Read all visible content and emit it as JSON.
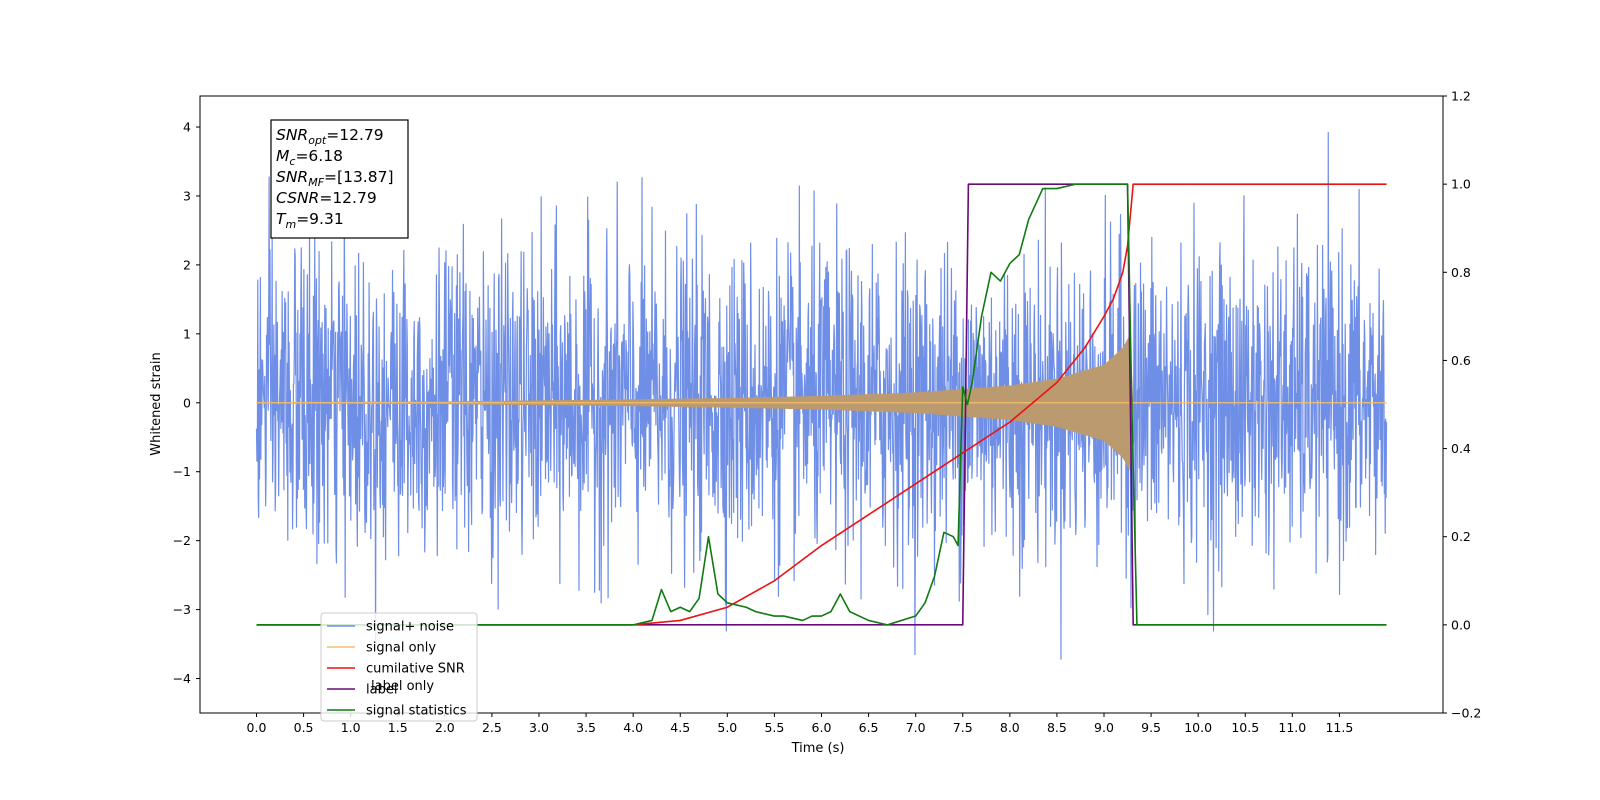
{
  "chart_data": {
    "type": "line",
    "title": "",
    "xlabel": "Time (s)",
    "ylabel": "Whitened strain",
    "xlim": [
      -0.6,
      12.6
    ],
    "ylim": [
      -4.5,
      4.45
    ],
    "y2lim": [
      -0.2,
      1.2
    ],
    "x_ticks": [
      0.0,
      0.5,
      1.0,
      1.5,
      2.0,
      2.5,
      3.0,
      3.5,
      4.0,
      4.5,
      5.0,
      5.5,
      6.0,
      6.5,
      7.0,
      7.5,
      8.0,
      8.5,
      9.0,
      9.5,
      10.0,
      10.5,
      11.0,
      11.5
    ],
    "x_tick_labels": [
      "0.0",
      "0.5",
      "1.0",
      "1.5",
      "2.0",
      "2.5",
      "3.0",
      "3.5",
      "4.0",
      "4.5",
      "5.0",
      "5.5",
      "6.0",
      "6.5",
      "7.0",
      "7.5",
      "8.0",
      "8.5",
      "9.0",
      "9.5",
      "10.0",
      "10.5",
      "11.0",
      "11.5"
    ],
    "y_ticks": [
      4,
      3,
      2,
      1,
      0,
      -1,
      -2,
      -3,
      -4
    ],
    "y_tick_labels": [
      "4",
      "3",
      "2",
      "1",
      "0",
      "−1",
      "−2",
      "−3",
      "−4"
    ],
    "y2_ticks": [
      1.2,
      1.0,
      0.8,
      0.6,
      0.4,
      0.2,
      0.0,
      -0.2
    ],
    "y2_tick_labels": [
      "1.2",
      "1.0",
      "0.8",
      "0.6",
      "0.4",
      "0.2",
      "0.0",
      "−0.2"
    ],
    "grid": false,
    "legend_position": "lower-left",
    "annotation_box": {
      "lines": [
        {
          "main": "SNR",
          "sub": "opt",
          "rest": "=12.79"
        },
        {
          "main": "M",
          "sub": "c",
          "rest": "=6.18"
        },
        {
          "main": "SNR",
          "sub": "MF",
          "rest": "=[13.87]"
        },
        {
          "main": "CSNR",
          "sub": "",
          "rest": "=12.79"
        },
        {
          "main": "T",
          "sub": "m",
          "rest": "=9.31"
        }
      ]
    },
    "series": [
      {
        "name": "signal+ noise",
        "axis": "left",
        "color": "#6f8ee6",
        "t_end": 12.0,
        "noise_sigma": 1.1,
        "range_min": -4.0,
        "range_max": 4.05
      },
      {
        "name": "signal only",
        "axis": "left",
        "color": "#f5bf6a",
        "envelope": [
          [
            0.0,
            0.01
          ],
          [
            2.0,
            0.02
          ],
          [
            4.0,
            0.05
          ],
          [
            5.0,
            0.07
          ],
          [
            6.0,
            0.1
          ],
          [
            7.0,
            0.15
          ],
          [
            7.5,
            0.2
          ],
          [
            8.0,
            0.25
          ],
          [
            8.5,
            0.35
          ],
          [
            9.0,
            0.55
          ],
          [
            9.2,
            0.8
          ],
          [
            9.28,
            1.0
          ],
          [
            9.31,
            0.0
          ],
          [
            12.0,
            0.0
          ]
        ]
      },
      {
        "name": "cumilative SNR",
        "axis": "right",
        "color": "#ee1111",
        "x": [
          0.0,
          4.0,
          4.5,
          5.0,
          5.5,
          6.0,
          6.5,
          7.0,
          7.5,
          8.0,
          8.5,
          8.8,
          9.0,
          9.1,
          9.2,
          9.25,
          9.28,
          9.31,
          12.0
        ],
        "values": [
          0.0,
          0.0,
          0.01,
          0.04,
          0.1,
          0.18,
          0.25,
          0.32,
          0.39,
          0.46,
          0.55,
          0.63,
          0.7,
          0.74,
          0.8,
          0.86,
          0.93,
          1.0,
          1.0
        ]
      },
      {
        "name": "label",
        "axis": "right",
        "color": "#6a0a7a",
        "x": [
          0.0,
          7.5,
          7.56,
          9.25,
          9.31,
          12.0
        ],
        "values": [
          0.0,
          0.0,
          1.0,
          1.0,
          0.0,
          0.0
        ]
      },
      {
        "name": "signal statistics",
        "axis": "right",
        "color": "#117a11",
        "x": [
          0.0,
          4.0,
          4.2,
          4.3,
          4.4,
          4.5,
          4.6,
          4.7,
          4.8,
          4.9,
          5.0,
          5.2,
          5.3,
          5.5,
          5.6,
          5.8,
          5.9,
          6.0,
          6.1,
          6.2,
          6.3,
          6.5,
          6.7,
          7.0,
          7.1,
          7.2,
          7.3,
          7.4,
          7.45,
          7.5,
          7.55,
          7.6,
          7.7,
          7.8,
          7.9,
          8.0,
          8.1,
          8.2,
          8.35,
          8.5,
          8.7,
          9.0,
          9.25,
          9.3,
          9.35,
          12.0
        ],
        "values": [
          0.0,
          0.0,
          0.01,
          0.08,
          0.03,
          0.04,
          0.03,
          0.06,
          0.2,
          0.07,
          0.05,
          0.04,
          0.03,
          0.02,
          0.02,
          0.01,
          0.02,
          0.02,
          0.03,
          0.07,
          0.03,
          0.01,
          0.0,
          0.02,
          0.05,
          0.11,
          0.21,
          0.2,
          0.18,
          0.54,
          0.5,
          0.55,
          0.7,
          0.8,
          0.78,
          0.82,
          0.84,
          0.92,
          0.99,
          0.99,
          1.0,
          1.0,
          1.0,
          0.45,
          0.0,
          0.0
        ]
      }
    ],
    "legend_entries": [
      {
        "label": "signal+ noise",
        "color": "#6f8ee6"
      },
      {
        "label": "signal only",
        "color": "#f5bf6a"
      },
      {
        "label": "cumilative SNR",
        "color": "#ee1111"
      },
      {
        "label": "label",
        "color": "#6a0a7a"
      },
      {
        "label": "signal statistics",
        "color": "#117a11"
      }
    ],
    "background_text": [
      {
        "text": "label only",
        "color": "#c8c8c8"
      }
    ]
  }
}
